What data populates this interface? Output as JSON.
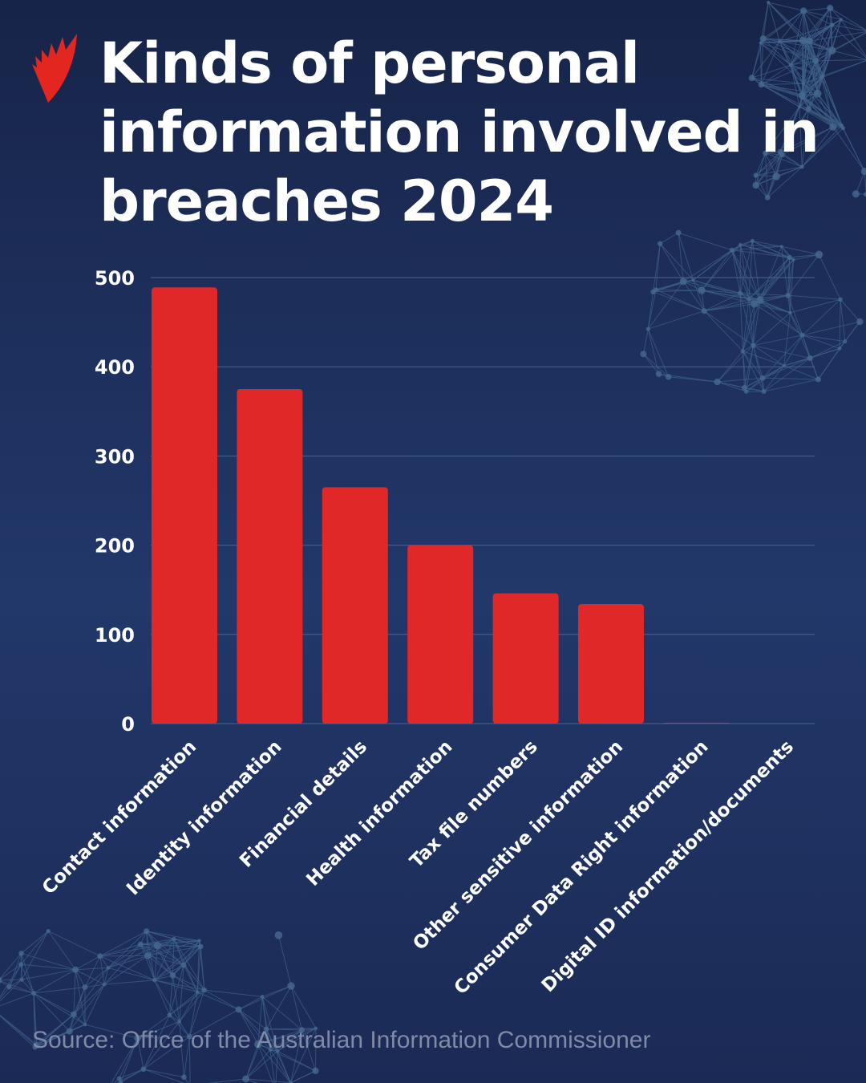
{
  "title": "Kinds of personal information involved in breaches 2024",
  "source": "Source: Office of the Australian Information Commissioner",
  "logo": "SBS",
  "colors": {
    "bar": "#e02828",
    "background": "#1f3263",
    "grid": "#4a6294",
    "text": "#ffffff"
  },
  "chart_data": {
    "type": "bar",
    "title": "Kinds of personal information involved in breaches 2024",
    "categories": [
      "Contact information",
      "Identity information",
      "Financial details",
      "Health information",
      "Tax file numbers",
      "Other sensitive information",
      "Consumer Data Right information",
      "Digital ID information/documents"
    ],
    "values": [
      489,
      375,
      265,
      200,
      146,
      134,
      1,
      0
    ],
    "ylim": [
      0,
      500
    ],
    "yticks": [
      0,
      100,
      200,
      300,
      400,
      500
    ],
    "grid": true,
    "xlabel": "",
    "ylabel": ""
  }
}
